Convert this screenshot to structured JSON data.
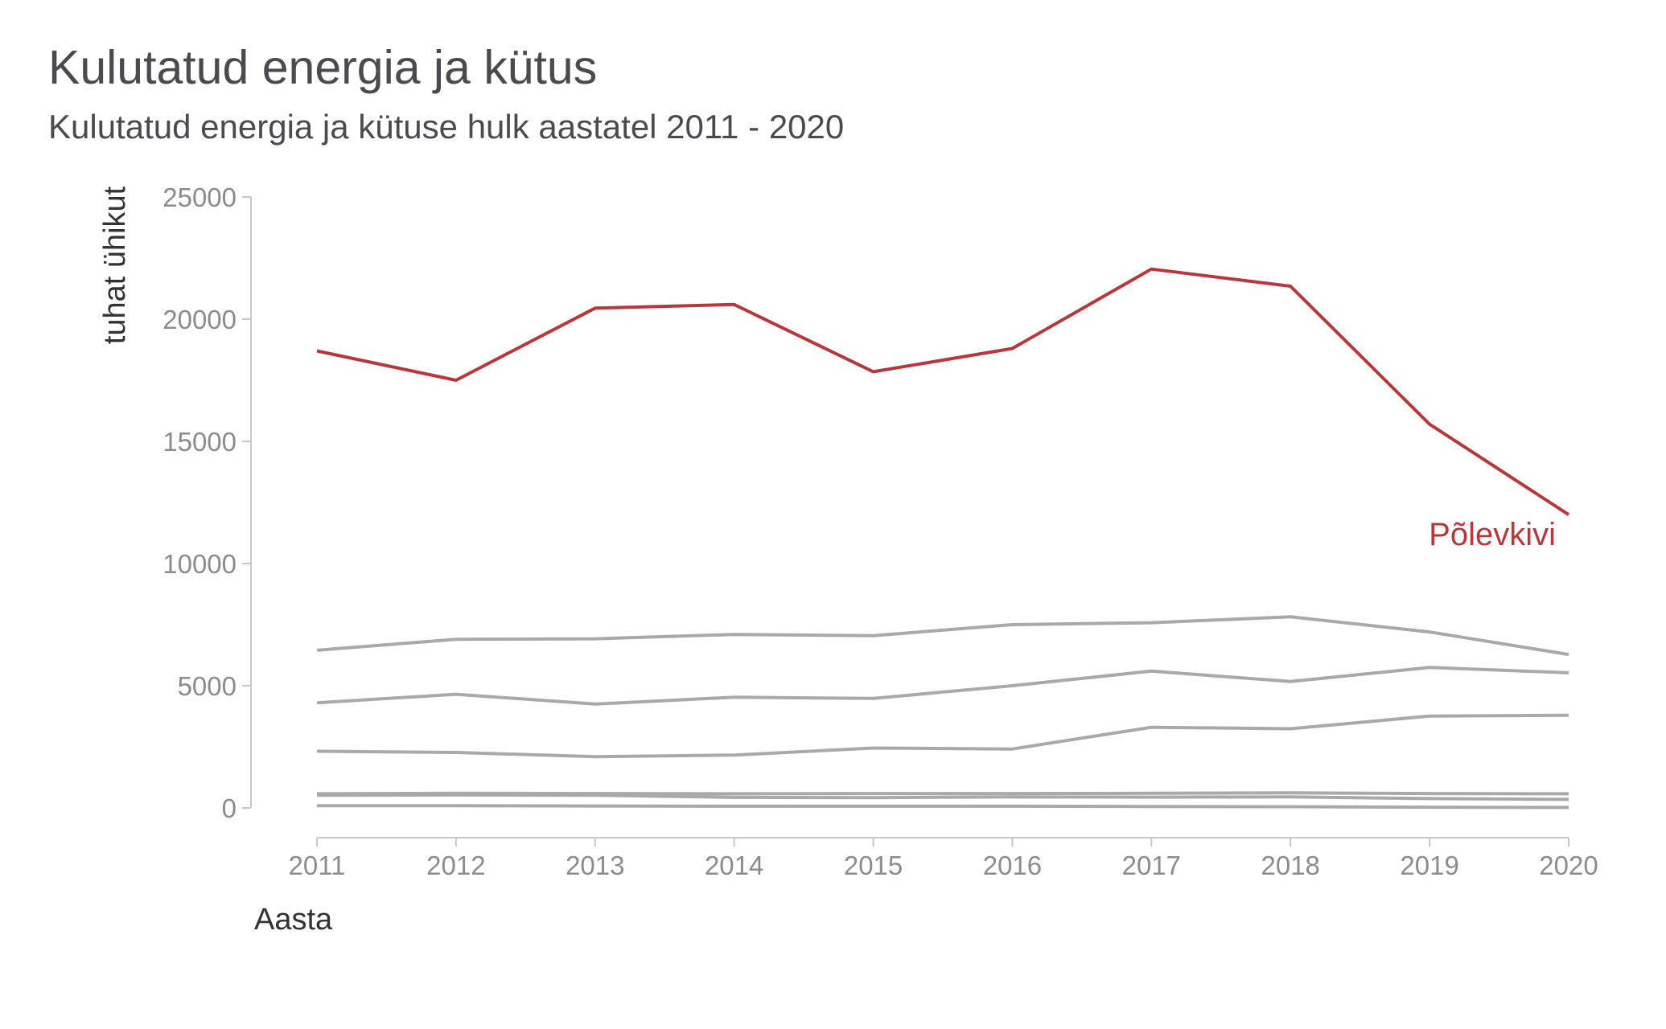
{
  "chart_data": {
    "type": "line",
    "title": "Kulutatud energia ja kütus",
    "subtitle": "Kulutatud energia ja kütuse hulk aastatel 2011 - 2020",
    "xlabel": "Aasta",
    "ylabel": "tuhat ühikut",
    "x": [
      2011,
      2012,
      2013,
      2014,
      2015,
      2016,
      2017,
      2018,
      2019,
      2020
    ],
    "ylim": [
      0,
      25000
    ],
    "yticks": [
      0,
      5000,
      10000,
      15000,
      20000,
      25000
    ],
    "grid": false,
    "legend": "none",
    "highlight_color": "#b5393c",
    "base_color": "#a9a9a9",
    "series": [
      {
        "name": "Põlevkivi",
        "highlight": true,
        "values": [
          18700,
          17500,
          20450,
          20600,
          17850,
          18800,
          22050,
          21350,
          15700,
          12000
        ]
      },
      {
        "values": [
          6450,
          6900,
          6920,
          7100,
          7050,
          7500,
          7580,
          7820,
          7200,
          6280
        ]
      },
      {
        "values": [
          4300,
          4650,
          4250,
          4530,
          4480,
          5000,
          5600,
          5170,
          5750,
          5530
        ]
      },
      {
        "values": [
          2320,
          2270,
          2100,
          2160,
          2450,
          2410,
          3300,
          3240,
          3760,
          3790
        ]
      },
      {
        "values": [
          580,
          600,
          590,
          580,
          590,
          590,
          600,
          620,
          590,
          580
        ]
      },
      {
        "values": [
          520,
          530,
          520,
          430,
          420,
          450,
          440,
          450,
          380,
          350
        ]
      },
      {
        "values": [
          90,
          90,
          80,
          70,
          70,
          70,
          60,
          50,
          30,
          20
        ]
      }
    ]
  }
}
